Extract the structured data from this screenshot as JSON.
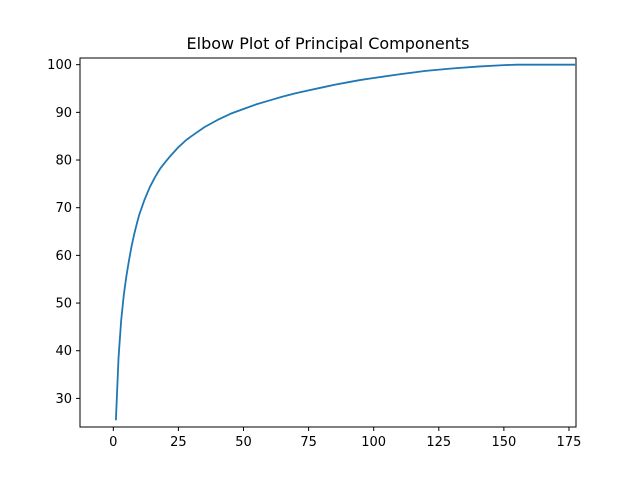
{
  "chart_data": {
    "type": "line",
    "title": "Elbow Plot of Principal Components",
    "xlabel": "",
    "ylabel": "",
    "xlim": [
      -12.8,
      177.7
    ],
    "ylim": [
      24.0,
      101.4
    ],
    "x_ticks": [
      0,
      25,
      50,
      75,
      100,
      125,
      150,
      175
    ],
    "y_ticks": [
      30,
      40,
      50,
      60,
      70,
      80,
      90,
      100
    ],
    "grid": false,
    "legend": "none",
    "series": [
      {
        "color": "#1f77b4",
        "x": [
          1,
          2,
          3,
          4,
          5,
          6,
          7,
          8,
          9,
          10,
          12,
          14,
          16,
          18,
          20,
          22,
          25,
          28,
          30,
          35,
          40,
          45,
          50,
          55,
          60,
          65,
          70,
          75,
          80,
          85,
          90,
          95,
          100,
          110,
          120,
          130,
          140,
          150,
          155,
          160,
          165,
          170,
          177
        ],
        "y": [
          25.6,
          38.5,
          46.3,
          51.6,
          55.6,
          58.9,
          61.9,
          64.4,
          66.6,
          68.6,
          71.7,
          74.3,
          76.4,
          78.2,
          79.6,
          80.9,
          82.7,
          84.2,
          85.0,
          86.9,
          88.4,
          89.7,
          90.7,
          91.7,
          92.5,
          93.3,
          94.0,
          94.6,
          95.2,
          95.8,
          96.3,
          96.8,
          97.2,
          98.0,
          98.7,
          99.2,
          99.6,
          99.9,
          100.0,
          100.0,
          100.0,
          100.0,
          100.0
        ]
      }
    ]
  }
}
